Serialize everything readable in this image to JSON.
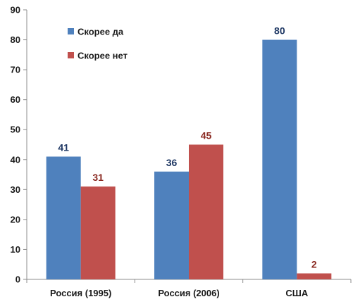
{
  "chart_data": {
    "type": "bar",
    "title": "",
    "xlabel": "",
    "ylabel": "",
    "ylim": [
      0,
      90
    ],
    "yticks": [
      0,
      10,
      20,
      30,
      40,
      50,
      60,
      70,
      80,
      90
    ],
    "grid": false,
    "legend_position": "top-left",
    "categories": [
      "Россия (1995)",
      "Россия (2006)",
      "США"
    ],
    "series": [
      {
        "name": "Скорее да",
        "color": "#4f81bd",
        "label_color": "#1f3864",
        "values": [
          41,
          36,
          80
        ]
      },
      {
        "name": "Скорее нет",
        "color": "#c0504d",
        "label_color": "#8b2a22",
        "values": [
          31,
          45,
          2
        ]
      }
    ]
  }
}
